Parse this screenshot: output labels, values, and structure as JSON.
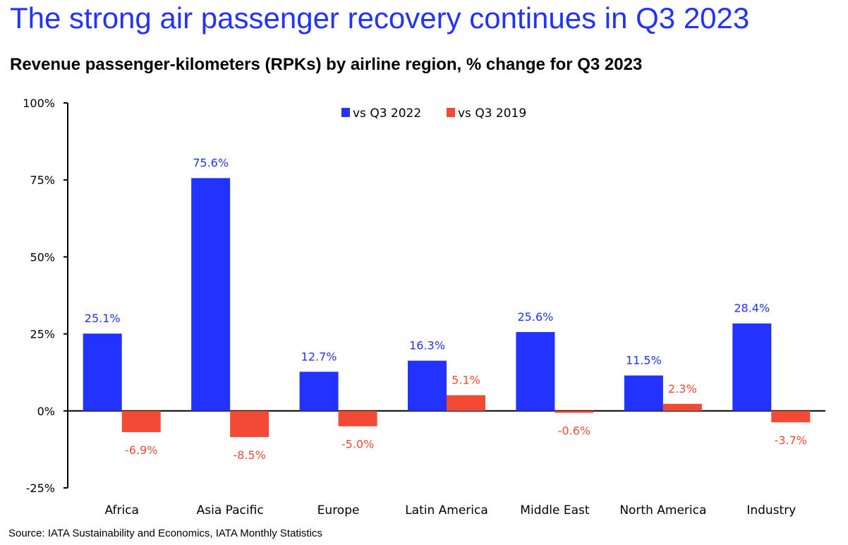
{
  "header": {
    "title": "The strong air passenger recovery continues in Q3 2023",
    "subtitle": "Revenue passenger-kilometers (RPKs) by airline region, % change for Q3 2023"
  },
  "footer": {
    "source": "Source: IATA Sustainability and Economics, IATA Monthly Statistics"
  },
  "colors": {
    "title": "#2233ff",
    "series_2022": "#2233ff",
    "series_2019": "#f24a35"
  },
  "chart_data": {
    "type": "bar",
    "title": "Revenue passenger-kilometers (RPKs) by airline region, % change for Q3 2023",
    "xlabel": "",
    "ylabel": "",
    "ylim": [
      -25,
      100
    ],
    "yticks": [
      100,
      75,
      50,
      25,
      0,
      -25
    ],
    "ytick_labels": [
      "100%",
      "75%",
      "50%",
      "25%",
      "0%",
      "-25%"
    ],
    "grid": false,
    "legend_position": "top-center",
    "categories": [
      "Africa",
      "Asia Pacific",
      "Europe",
      "Latin America",
      "Middle East",
      "North America",
      "Industry"
    ],
    "series": [
      {
        "name": "vs Q3 2022",
        "color": "#2233ff",
        "values": [
          25.1,
          75.6,
          12.7,
          16.3,
          25.6,
          11.5,
          28.4
        ],
        "labels": [
          "25.1%",
          "75.6%",
          "12.7%",
          "16.3%",
          "25.6%",
          "11.5%",
          "28.4%"
        ]
      },
      {
        "name": "vs Q3 2019",
        "color": "#f24a35",
        "values": [
          -6.9,
          -8.5,
          -5.0,
          5.1,
          -0.6,
          2.3,
          -3.7
        ],
        "labels": [
          "-6.9%",
          "-8.5%",
          "-5.0%",
          "5.1%",
          "-0.6%",
          "2.3%",
          "-3.7%"
        ]
      }
    ]
  }
}
